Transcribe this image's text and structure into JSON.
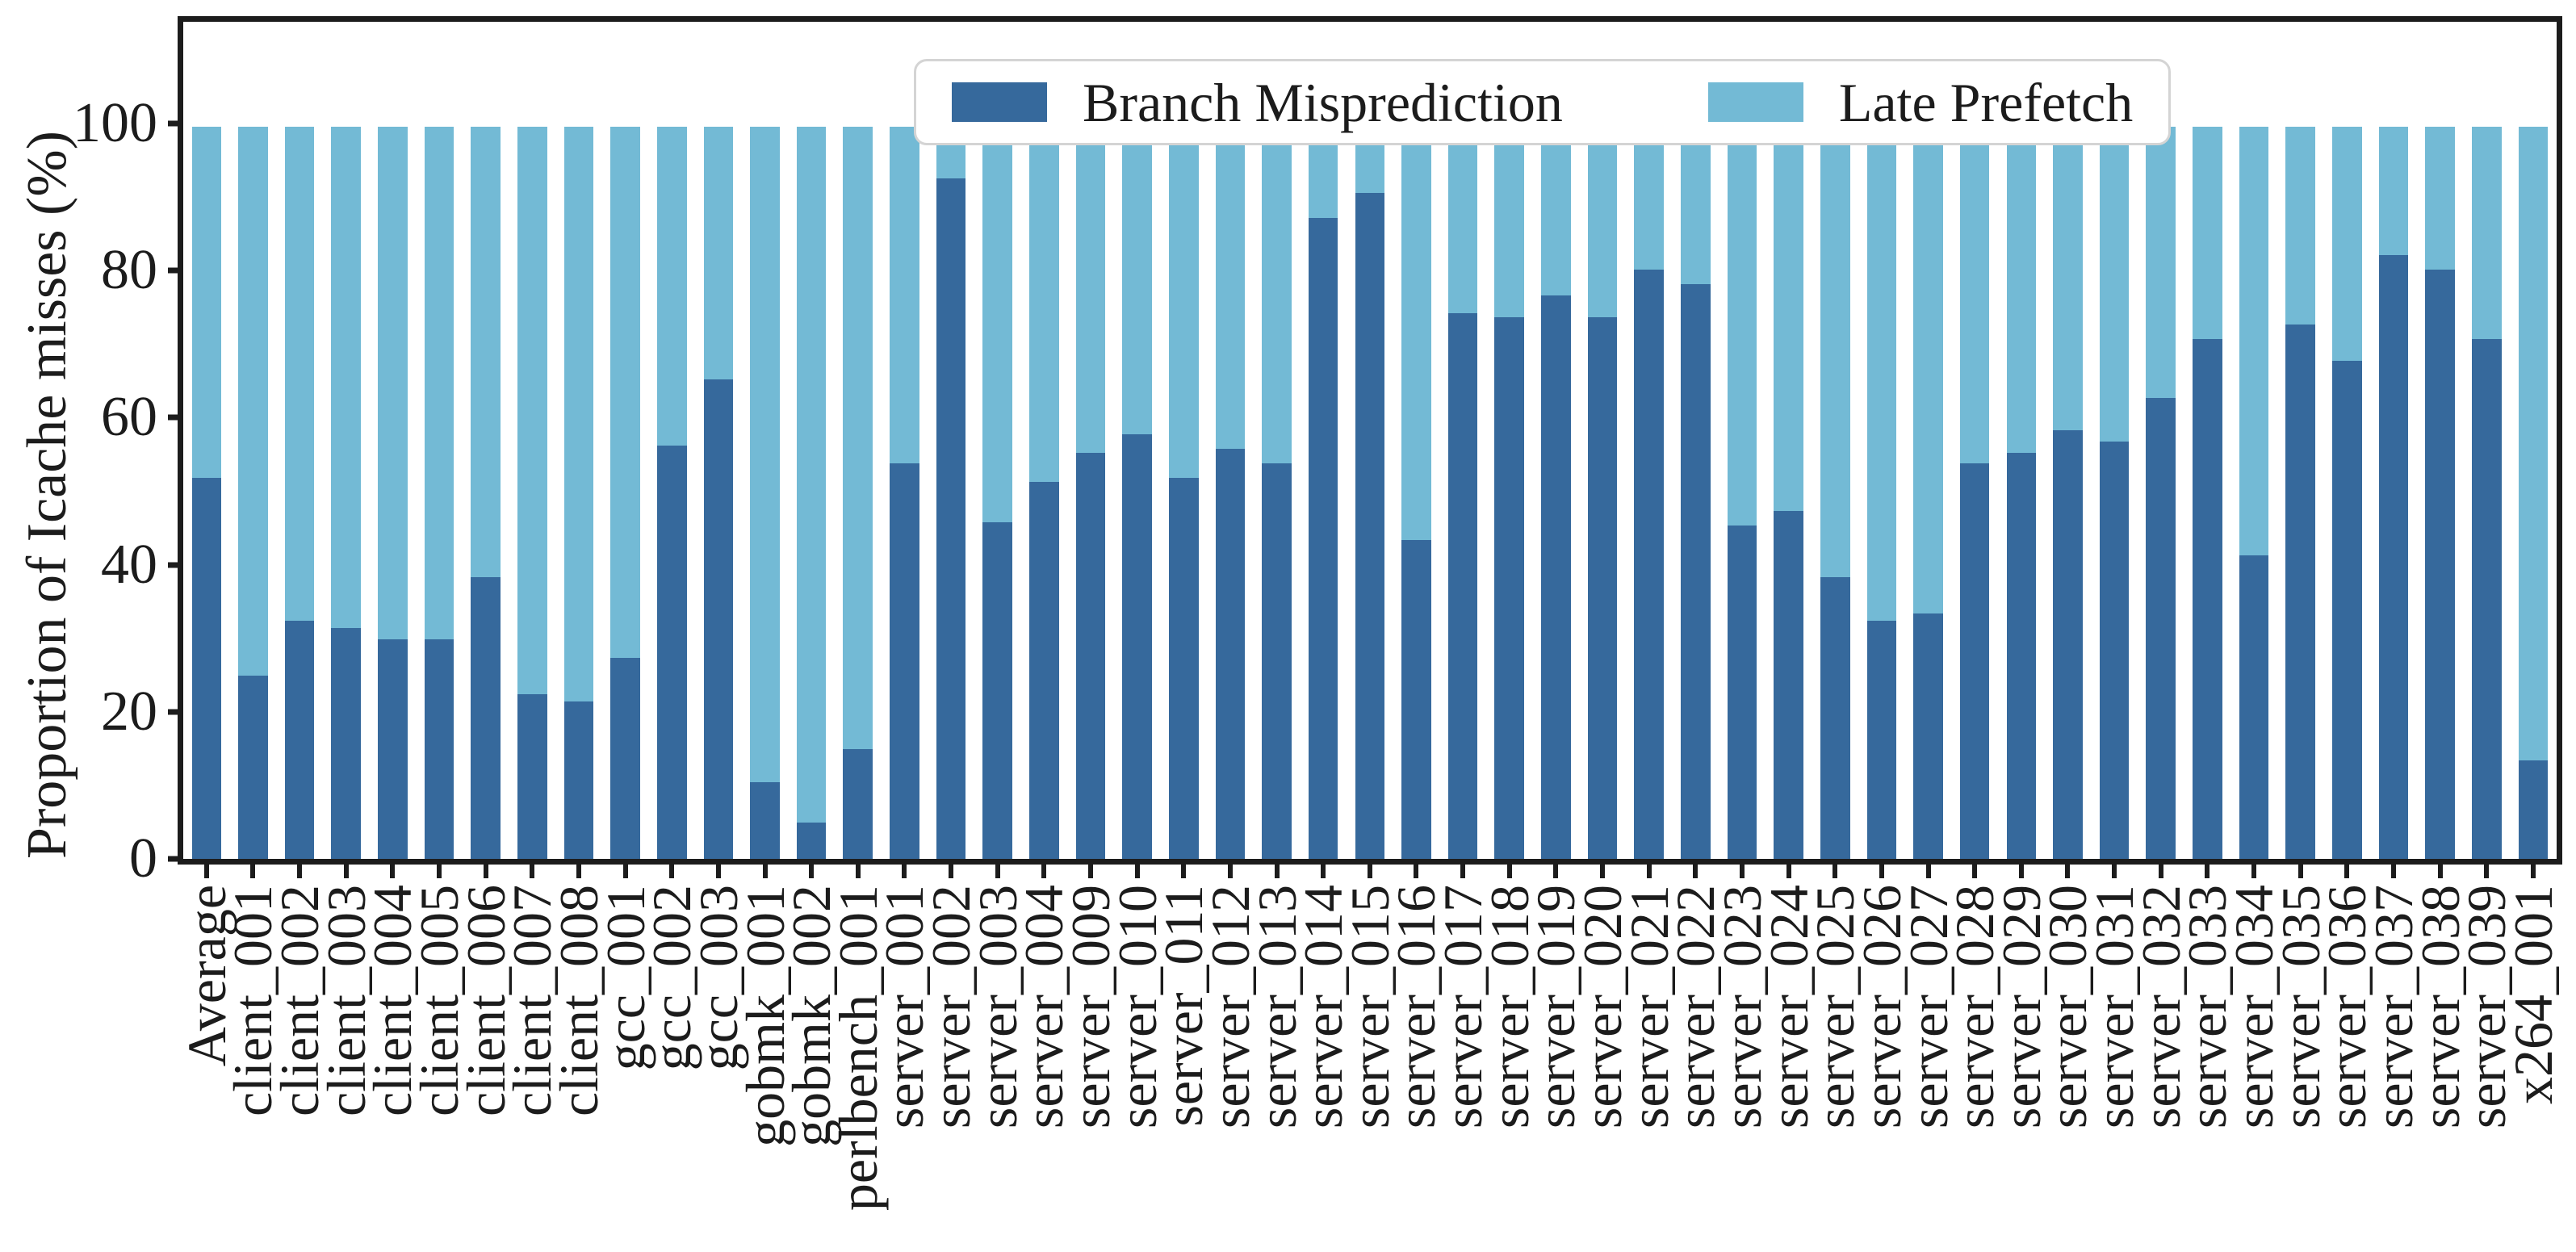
{
  "figure": {
    "background": "#ffffff",
    "frame_color": "#1c1c1c"
  },
  "chart_data": {
    "type": "bar",
    "stacked": true,
    "title": "",
    "xlabel": "",
    "ylabel": "Proportion of Icache misses (%)",
    "ylim": [
      0,
      113
    ],
    "yticks": [
      0,
      20,
      40,
      60,
      80,
      100
    ],
    "grid": false,
    "legend_position": "upper center",
    "categories": [
      "Average",
      "client_001",
      "client_002",
      "client_003",
      "client_004",
      "client_005",
      "client_006",
      "client_007",
      "client_008",
      "gcc_001",
      "gcc_002",
      "gcc_003",
      "gobmk_001",
      "gobmk_002",
      "perlbench_001",
      "server_001",
      "server_002",
      "server_003",
      "server_004",
      "server_009",
      "server_010",
      "server_011",
      "server_012",
      "server_013",
      "server_014",
      "server_015",
      "server_016",
      "server_017",
      "server_018",
      "server_019",
      "server_020",
      "server_021",
      "server_022",
      "server_023",
      "server_024",
      "server_025",
      "server_026",
      "server_027",
      "server_028",
      "server_029",
      "server_030",
      "server_031",
      "server_032",
      "server_033",
      "server_034",
      "server_035",
      "server_036",
      "server_037",
      "server_038",
      "server_039",
      "x264_001"
    ],
    "series": [
      {
        "name": "Branch Misprediction",
        "color": "#36699c",
        "values": [
          52,
          25,
          32.5,
          31.5,
          30,
          30,
          38.5,
          22.5,
          21.5,
          27.5,
          56.5,
          65.5,
          10.5,
          5,
          15,
          54,
          93,
          46,
          51.5,
          55.5,
          58,
          52,
          56,
          54,
          87.5,
          91,
          43.5,
          74.5,
          74,
          77,
          74,
          80.5,
          78.5,
          45.5,
          47.5,
          38.5,
          32.5,
          33.5,
          54,
          55.5,
          58.5,
          57,
          63,
          71,
          41.5,
          73,
          68,
          82.5,
          80.5,
          71,
          13.5
        ]
      },
      {
        "name": "Late Prefetch",
        "color": "#73bad5",
        "values": [
          48,
          75,
          67.5,
          68.5,
          70,
          70,
          61.5,
          77.5,
          78.5,
          72.5,
          43.5,
          34.5,
          89.5,
          95,
          85,
          46,
          7,
          54,
          48.5,
          44.5,
          42,
          48,
          44,
          46,
          12.5,
          9,
          56.5,
          25.5,
          26,
          23,
          26,
          19.5,
          21.5,
          54.5,
          52.5,
          61.5,
          67.5,
          66.5,
          46,
          44.5,
          41.5,
          43,
          37,
          29,
          58.5,
          27,
          32,
          17.5,
          19.5,
          29,
          86.5
        ]
      }
    ]
  }
}
